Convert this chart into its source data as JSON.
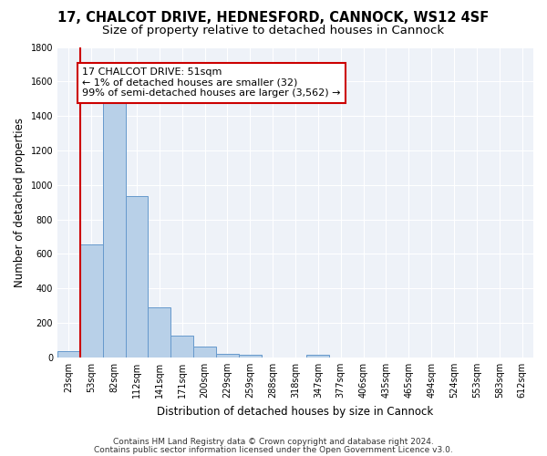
{
  "title1": "17, CHALCOT DRIVE, HEDNESFORD, CANNOCK, WS12 4SF",
  "title2": "Size of property relative to detached houses in Cannock",
  "xlabel": "Distribution of detached houses by size in Cannock",
  "ylabel": "Number of detached properties",
  "categories": [
    "23sqm",
    "53sqm",
    "82sqm",
    "112sqm",
    "141sqm",
    "171sqm",
    "200sqm",
    "229sqm",
    "259sqm",
    "288sqm",
    "318sqm",
    "347sqm",
    "377sqm",
    "406sqm",
    "435sqm",
    "465sqm",
    "494sqm",
    "524sqm",
    "553sqm",
    "583sqm",
    "612sqm"
  ],
  "values": [
    38,
    655,
    1475,
    935,
    290,
    125,
    62,
    22,
    15,
    0,
    0,
    14,
    0,
    0,
    0,
    0,
    0,
    0,
    0,
    0,
    0
  ],
  "bar_color": "#b8d0e8",
  "bar_edge_color": "#6699cc",
  "vline_color": "#cc0000",
  "annotation_text": "17 CHALCOT DRIVE: 51sqm\n← 1% of detached houses are smaller (32)\n99% of semi-detached houses are larger (3,562) →",
  "annotation_box_color": "#cc0000",
  "ylim": [
    0,
    1800
  ],
  "yticks": [
    0,
    200,
    400,
    600,
    800,
    1000,
    1200,
    1400,
    1600,
    1800
  ],
  "footer1": "Contains HM Land Registry data © Crown copyright and database right 2024.",
  "footer2": "Contains public sector information licensed under the Open Government Licence v3.0.",
  "bg_color": "#eef2f8",
  "title1_fontsize": 10.5,
  "title2_fontsize": 9.5,
  "axis_label_fontsize": 8.5,
  "tick_fontsize": 7,
  "annotation_fontsize": 8,
  "footer_fontsize": 6.5
}
